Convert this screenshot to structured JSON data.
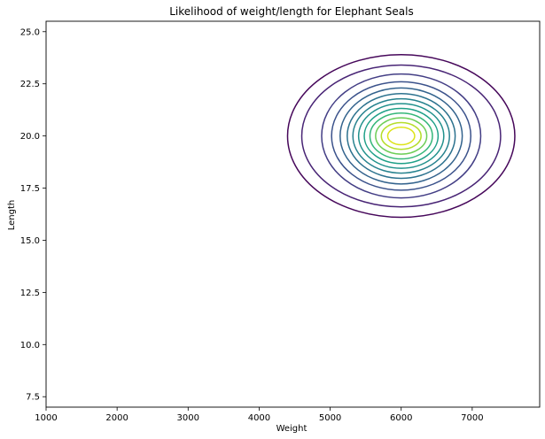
{
  "chart_data": {
    "type": "contour",
    "title": "Likelihood of weight/length for Elephant Seals",
    "xlabel": "Weight",
    "ylabel": "Length",
    "xlim": [
      1000,
      7950
    ],
    "ylim": [
      7.0,
      25.5
    ],
    "x_ticks": [
      1000,
      2000,
      3000,
      4000,
      5000,
      6000,
      7000
    ],
    "y_ticks": [
      7.5,
      10.0,
      12.5,
      15.0,
      17.5,
      20.0,
      22.5,
      25.0
    ],
    "x_tick_labels": [
      "1000",
      "2000",
      "3000",
      "4000",
      "5000",
      "6000",
      "7000"
    ],
    "y_tick_labels": [
      "7.5",
      "10.0",
      "12.5",
      "15.0",
      "17.5",
      "20.0",
      "22.5",
      "25.0"
    ],
    "grid": false,
    "colormap": "viridis",
    "center": {
      "x": 6000,
      "y": 20.0
    },
    "contour_levels": [
      {
        "rx": 1600,
        "ry": 3.9,
        "color": "#46075a"
      },
      {
        "rx": 1400,
        "ry": 3.4,
        "color": "#482475"
      },
      {
        "rx": 1120,
        "ry": 2.97,
        "color": "#433e85"
      },
      {
        "rx": 980,
        "ry": 2.6,
        "color": "#3b528b"
      },
      {
        "rx": 860,
        "ry": 2.3,
        "color": "#33638d"
      },
      {
        "rx": 760,
        "ry": 2.03,
        "color": "#2c728e"
      },
      {
        "rx": 680,
        "ry": 1.78,
        "color": "#26828e"
      },
      {
        "rx": 600,
        "ry": 1.55,
        "color": "#21918c"
      },
      {
        "rx": 520,
        "ry": 1.32,
        "color": "#1fa088"
      },
      {
        "rx": 440,
        "ry": 1.1,
        "color": "#35b779"
      },
      {
        "rx": 360,
        "ry": 0.87,
        "color": "#6ece58"
      },
      {
        "rx": 280,
        "ry": 0.64,
        "color": "#b5de2b"
      },
      {
        "rx": 190,
        "ry": 0.42,
        "color": "#dde318"
      }
    ]
  }
}
